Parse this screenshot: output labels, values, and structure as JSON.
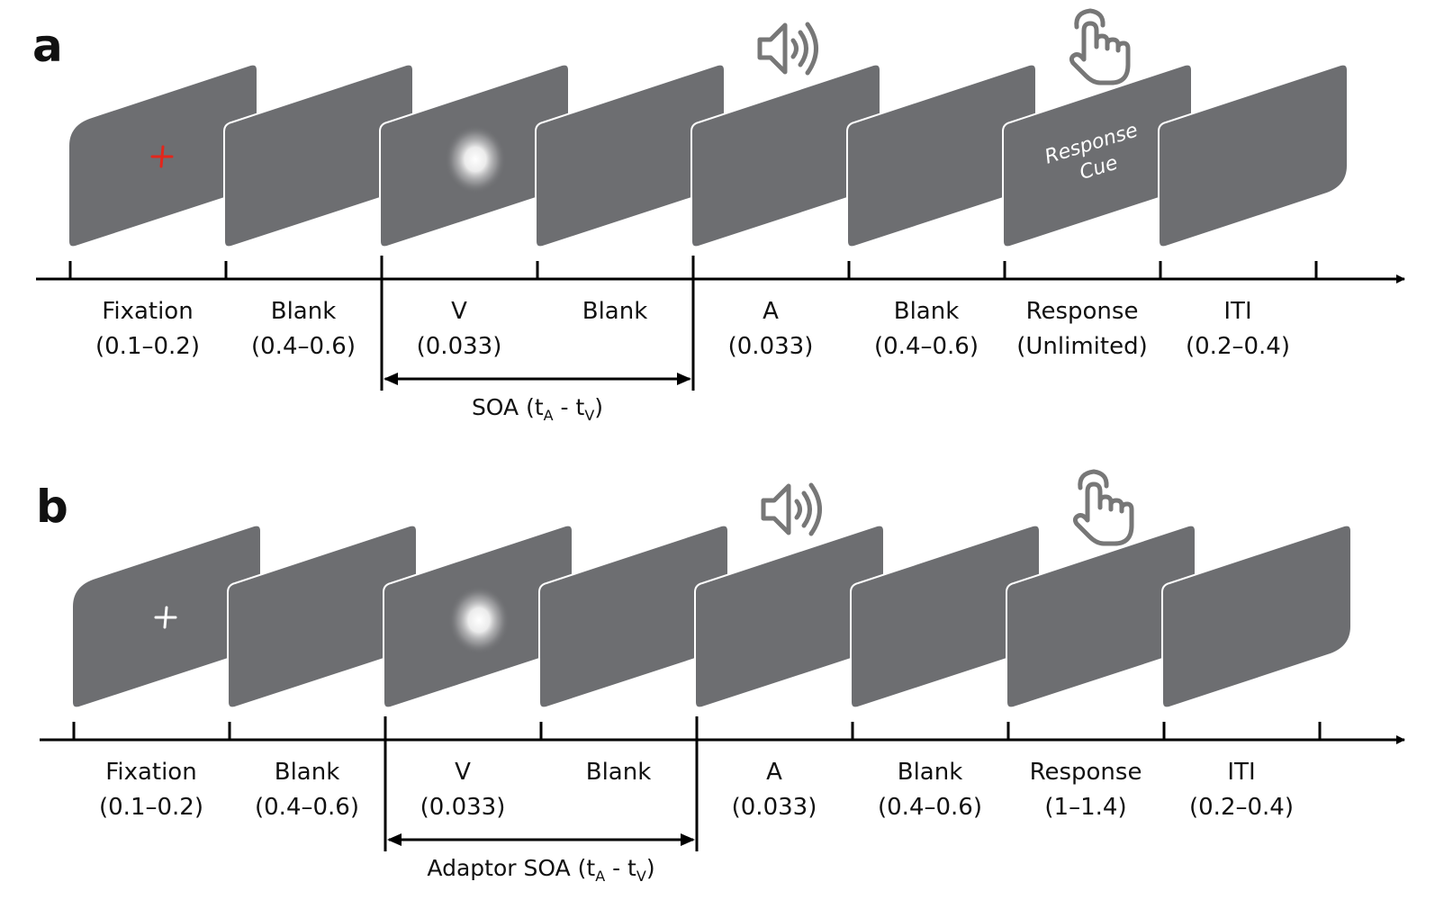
{
  "colors": {
    "screen": "#6d6e71",
    "screen_border": "#ffffff",
    "fixation_cross_a": "#e3261b",
    "fixation_cross_b": "#ffffff",
    "icon": "#777777",
    "axis": "#000000"
  },
  "panels": [
    {
      "letter": "a",
      "fixation_color": "#e3261b",
      "response_cue": [
        "Response",
        "Cue"
      ],
      "events": [
        {
          "name": "Fixation",
          "duration": "(0.1–0.2)"
        },
        {
          "name": "Blank",
          "duration": "(0.4–0.6)"
        },
        {
          "name": "V",
          "duration": "(0.033)"
        },
        {
          "name": "Blank",
          "duration": ""
        },
        {
          "name": "A",
          "duration": "(0.033)"
        },
        {
          "name": "Blank",
          "duration": "(0.4–0.6)"
        },
        {
          "name": "Response",
          "duration": "(Unlimited)"
        },
        {
          "name": "ITI",
          "duration": "(0.2–0.4)"
        }
      ],
      "soa_label": {
        "prefix": "SOA (t",
        "sub1": "A",
        "mid": " - t",
        "sub2": "V",
        "suffix": ")"
      }
    },
    {
      "letter": "b",
      "fixation_color": "#ffffff",
      "response_cue": [],
      "events": [
        {
          "name": "Fixation",
          "duration": "(0.1–0.2)"
        },
        {
          "name": "Blank",
          "duration": "(0.4–0.6)"
        },
        {
          "name": "V",
          "duration": "(0.033)"
        },
        {
          "name": "Blank",
          "duration": ""
        },
        {
          "name": "A",
          "duration": "(0.033)"
        },
        {
          "name": "Blank",
          "duration": "(0.4–0.6)"
        },
        {
          "name": "Response",
          "duration": "(1–1.4)"
        },
        {
          "name": "ITI",
          "duration": "(0.2–0.4)"
        }
      ],
      "soa_label": {
        "prefix": "Adaptor SOA (t",
        "sub1": "A",
        "mid": " - t",
        "sub2": "V",
        "suffix": ")"
      }
    }
  ],
  "icons": [
    "speaker-icon",
    "hand-tap-icon"
  ]
}
